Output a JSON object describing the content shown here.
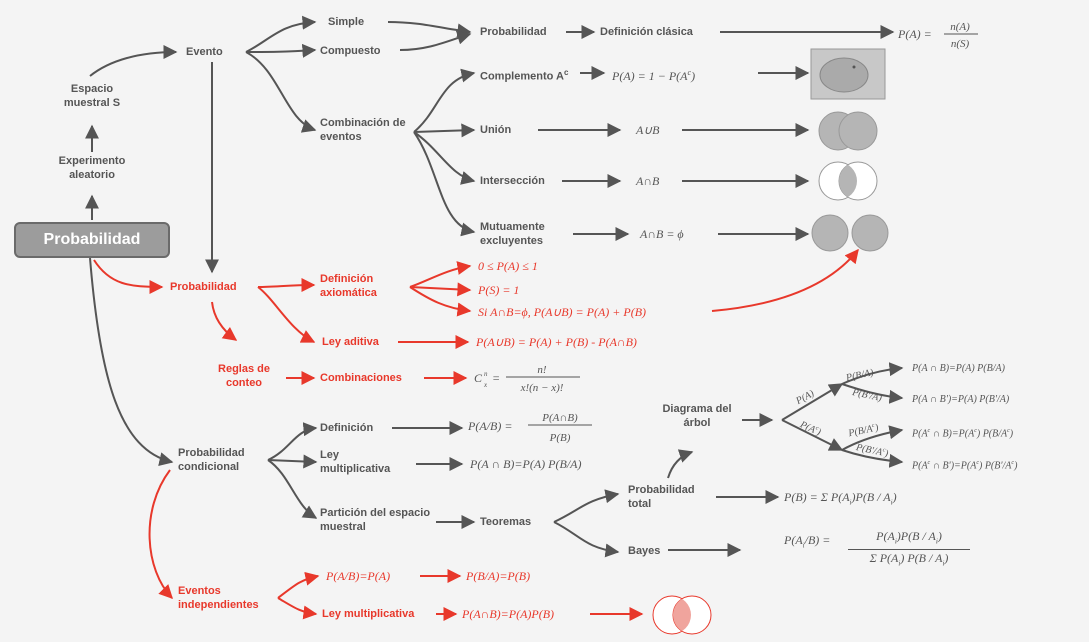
{
  "root": "Probabilidad",
  "left": {
    "experimento": "Experimento aleatorio",
    "espacio": "Espacio muestral S"
  },
  "evento": {
    "label": "Evento",
    "simple": "Simple",
    "compuesto": "Compuesto",
    "combinacion": "Combinación de eventos",
    "probabilidad": "Probabilidad",
    "def_clasica": "Definición clásica",
    "f_clasica": "P(A) = n(A)/n(S)",
    "complemento": "Complemento A",
    "complemento_sup": "c",
    "f_complemento": "P(A) = 1 − P(A",
    "f_complemento_end": ")",
    "union": "Unión",
    "f_union": "A∪B",
    "interseccion": "Intersección",
    "f_interseccion": "A∩B",
    "mutuamente": "Mutuamente excluyentes",
    "f_mutuamente": "A∩B = ϕ"
  },
  "probabilidad": {
    "label": "Probabilidad",
    "def_axiomatica": "Definición axiomática",
    "ax1": "0 ≤ P(A) ≤ 1",
    "ax2": "P(S) = 1",
    "ax3": "Si A∩B=ϕ,   P(A∪B) = P(A) + P(B)",
    "ley_aditiva": "Ley aditiva",
    "f_aditiva": "P(A∪B) = P(A) + P(B) - P(A∩B)",
    "reglas": "Reglas de conteo",
    "combinaciones": "Combinaciones",
    "f_comb_lhs": "C",
    "f_comb_num": "n!",
    "f_comb_den": "x!(n − x)!"
  },
  "condicional": {
    "label": "Probabilidad condicional",
    "definicion": "Definición",
    "f_def_lhs": "P(A/B) =",
    "f_def_num": "P(A∩B)",
    "f_def_den": "P(B)",
    "ley_mult": "Ley multiplicativa",
    "f_mult": "P(A ∩ B)=P(A) P(B/A)",
    "particion": "Partición del espacio muestral",
    "teoremas": "Teoremas",
    "prob_total": "Probabilidad total",
    "f_total": "P(B) = Σ P(A",
    "f_total_end": ")P(B / A",
    "f_total_close": ")",
    "bayes": "Bayes",
    "f_bayes_lhs": "P(A",
    "f_bayes_mid": "/B) =",
    "f_bayes_num": "P(A",
    "f_bayes_num_end": ")P(B / A",
    "f_bayes_close": ")",
    "f_bayes_den": "Σ P(A",
    "f_bayes_den_end": ") P(B / A",
    "arbol": "Diagrama del árbol",
    "tree_pa": "P(A)",
    "tree_pac": "P(A",
    "tree_pac_end": ")",
    "tree_pb_a": "P(B/A)",
    "tree_pbc_a": "P(B'/A)",
    "tree_pb_ac": "P(B/A",
    "tree_pbc_ac": "P(B'/A",
    "tree_end": ")",
    "leaf1": "P(A ∩ B)=P(A) P(B/A)",
    "leaf2": "P(A ∩ B')=P(A) P(B'/A)",
    "leaf3": "P(A",
    "leaf3_end": " ∩ B)=P(A",
    "leaf3_tail": ") P(B/A",
    "leaf4": "P(A",
    "leaf4_end": " ∩ B')=P(A",
    "leaf4_tail": ") P(B'/A",
    "sup_c": "c"
  },
  "independientes": {
    "label": "Eventos independientes",
    "f1": "P(A/B)=P(A)",
    "f2": "P(B/A)=P(B)",
    "ley_mult": "Ley multiplicativa",
    "f3": "P(A∩B)=P(A)P(B)"
  },
  "colors": {
    "gray": "#555555",
    "red": "#e8382b",
    "root_fill": "#9c9c9c",
    "venn_fill": "#b5b5b5"
  }
}
